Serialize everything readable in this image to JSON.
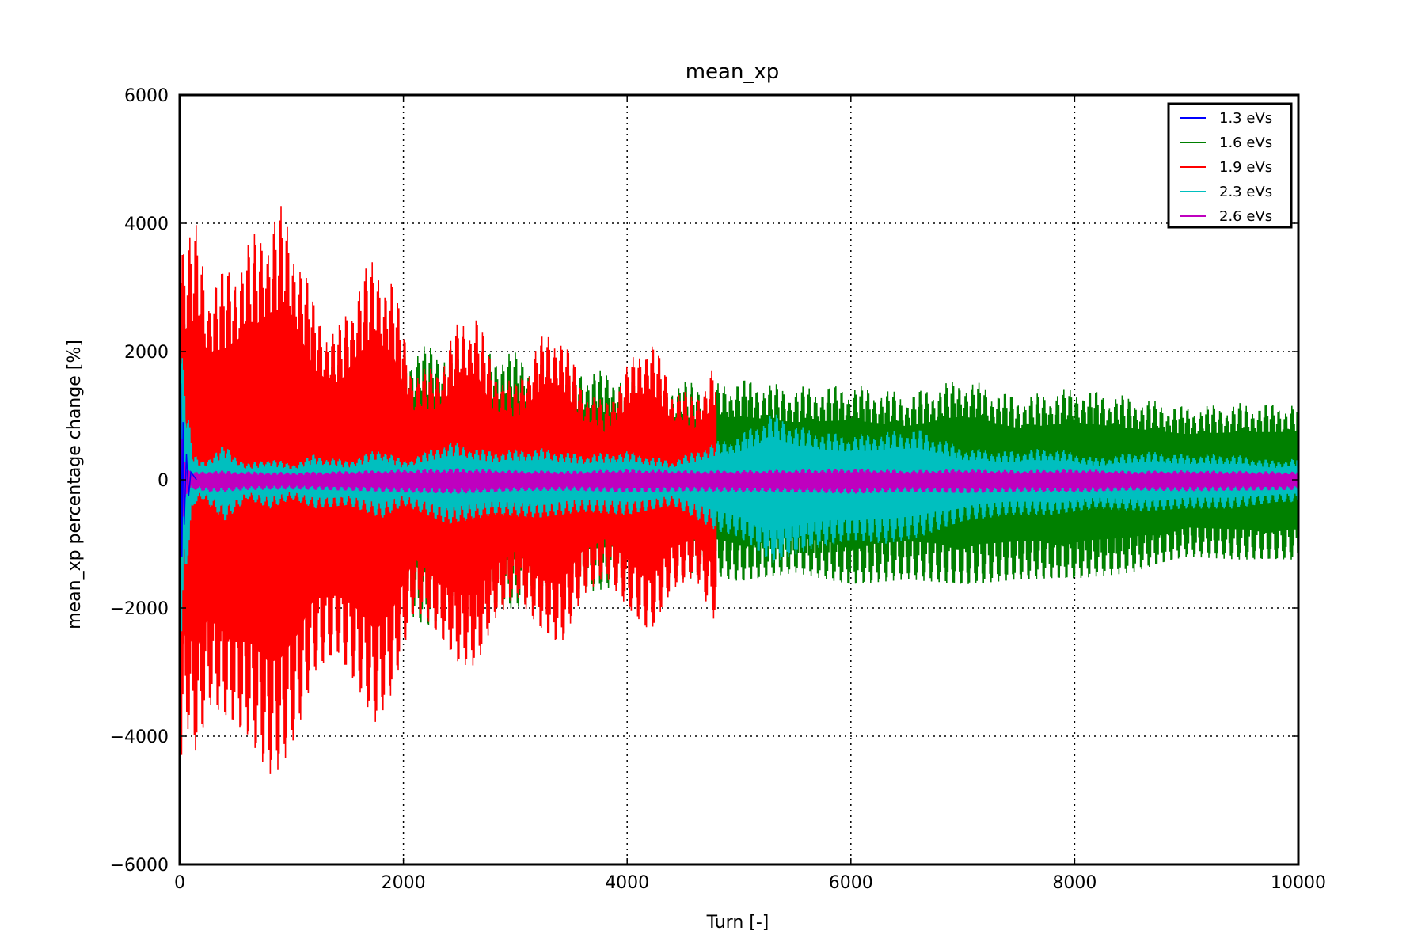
{
  "chart_data": {
    "type": "line",
    "title": "mean_xp",
    "xlabel": "Turn [-]",
    "ylabel": "mean_xp percentage change [%]",
    "xlim": [
      0,
      10000
    ],
    "ylim": [
      -6000,
      6000
    ],
    "xticks": [
      0,
      2000,
      4000,
      6000,
      8000,
      10000
    ],
    "xtick_labels": [
      "0",
      "2000",
      "4000",
      "6000",
      "8000",
      "10000"
    ],
    "yticks": [
      -6000,
      -4000,
      -2000,
      0,
      2000,
      4000,
      6000
    ],
    "ytick_labels": [
      "−6000",
      "−4000",
      "−2000",
      "0",
      "2000",
      "4000",
      "6000"
    ],
    "grid": true,
    "legend_position": "top-right",
    "series": [
      {
        "name": "1.3 eVs",
        "color": "#0000ff",
        "draw": "line",
        "x": [
          0,
          10,
          20,
          30,
          40,
          60,
          80,
          100,
          150
        ],
        "y": [
          0,
          1500,
          -1200,
          900,
          -700,
          400,
          -250,
          120,
          0
        ]
      },
      {
        "name": "1.6 eVs",
        "color": "#008000",
        "draw": "envelope",
        "x": [
          0,
          100,
          500,
          1000,
          1500,
          2000,
          2200,
          2500,
          3000,
          3500,
          3800,
          4200,
          4500,
          4800,
          5000,
          5500,
          6000,
          6500,
          7000,
          7500,
          8000,
          8500,
          9000,
          9500,
          10000
        ],
        "max": [
          3500,
          2600,
          2300,
          2100,
          2000,
          2050,
          2100,
          2100,
          2000,
          1800,
          1700,
          1600,
          1550,
          1500,
          1600,
          1450,
          1500,
          1350,
          1600,
          1300,
          1450,
          1300,
          1150,
          1200,
          1200
        ],
        "min": [
          -3500,
          -2600,
          -2300,
          -2100,
          -2000,
          -2050,
          -2300,
          -2100,
          -2000,
          -1800,
          -1700,
          -1600,
          -1550,
          -1500,
          -1600,
          -1450,
          -1650,
          -1550,
          -1650,
          -1550,
          -1550,
          -1450,
          -1200,
          -1250,
          -1250
        ]
      },
      {
        "name": "1.9 eVs",
        "color": "#ff0000",
        "draw": "envelope",
        "x": [
          0,
          50,
          150,
          250,
          400,
          600,
          800,
          900,
          1050,
          1200,
          1400,
          1600,
          1750,
          1900,
          2000,
          2100,
          2300,
          2500,
          2650,
          2800,
          3000,
          3200,
          3400,
          3600,
          3800,
          4000,
          4200,
          4400,
          4600,
          4800
        ],
        "max": [
          4400,
          3800,
          4000,
          3200,
          3300,
          3700,
          4200,
          4300,
          3800,
          2800,
          2300,
          3200,
          3500,
          3200,
          2400,
          1700,
          1800,
          2500,
          2700,
          1800,
          1500,
          2200,
          2400,
          1500,
          1200,
          1800,
          2300,
          1500,
          1300,
          1900
        ],
        "min": [
          -4800,
          -3800,
          -4300,
          -3500,
          -3700,
          -4000,
          -4600,
          -4500,
          -3900,
          -3000,
          -2700,
          -3300,
          -3800,
          -3300,
          -2600,
          -2000,
          -2400,
          -2900,
          -2900,
          -2200,
          -1800,
          -2300,
          -2600,
          -1800,
          -1500,
          -2000,
          -2400,
          -1700,
          -1500,
          -2300
        ]
      },
      {
        "name": "2.3 eVs",
        "color": "#00bfbf",
        "draw": "envelope",
        "x": [
          0,
          60,
          120,
          200,
          400,
          600,
          800,
          1000,
          1200,
          1500,
          1800,
          2000,
          2400,
          2800,
          3200,
          3600,
          4000,
          4400,
          4800,
          5000,
          5300,
          5600,
          6000,
          6300,
          6600,
          7000,
          7400,
          7800,
          8200,
          8600,
          9000,
          9400,
          9800,
          10000
        ],
        "max": [
          2800,
          1300,
          400,
          300,
          550,
          250,
          350,
          250,
          400,
          300,
          500,
          300,
          600,
          450,
          500,
          400,
          450,
          300,
          600,
          700,
          1050,
          800,
          700,
          750,
          800,
          500,
          450,
          500,
          350,
          450,
          400,
          400,
          300,
          350
        ],
        "min": [
          -2800,
          -1300,
          -400,
          -300,
          -650,
          -300,
          -450,
          -300,
          -450,
          -400,
          -600,
          -400,
          -700,
          -550,
          -600,
          -500,
          -550,
          -400,
          -800,
          -900,
          -1300,
          -1100,
          -950,
          -1000,
          -900,
          -650,
          -550,
          -550,
          -450,
          -500,
          -450,
          -450,
          -350,
          -350
        ]
      },
      {
        "name": "2.6 eVs",
        "color": "#bf00bf",
        "draw": "envelope",
        "x": [
          0,
          30,
          60,
          100,
          300,
          600,
          1000,
          1500,
          2000,
          2500,
          3000,
          3500,
          4000,
          4500,
          5000,
          5500,
          6000,
          6500,
          7000,
          7500,
          8000,
          8500,
          9000,
          9500,
          10000
        ],
        "max": [
          1500,
          500,
          200,
          120,
          150,
          130,
          120,
          140,
          160,
          180,
          150,
          140,
          170,
          150,
          150,
          160,
          180,
          150,
          170,
          150,
          170,
          140,
          150,
          140,
          130
        ],
        "min": [
          -1500,
          -500,
          -200,
          -150,
          -200,
          -160,
          -150,
          -170,
          -200,
          -220,
          -180,
          -170,
          -200,
          -180,
          -190,
          -200,
          -220,
          -190,
          -210,
          -190,
          -200,
          -170,
          -180,
          -170,
          -160
        ]
      }
    ]
  }
}
